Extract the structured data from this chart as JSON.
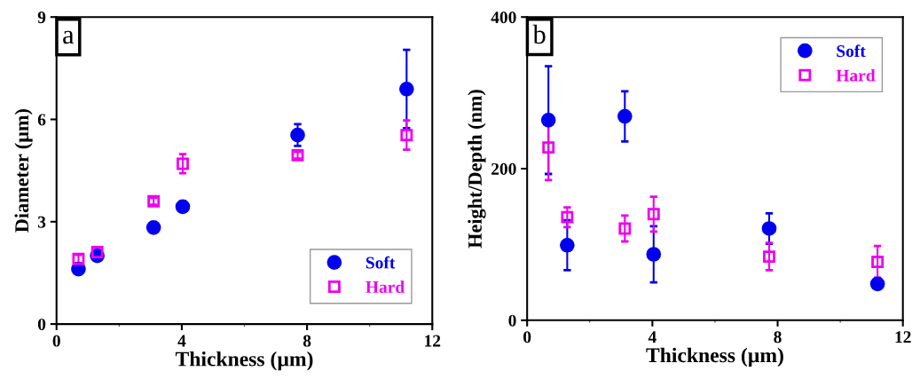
{
  "chart_data": [
    {
      "type": "scatter",
      "annotations": [
        "a"
      ],
      "xlabel": "Thickness (µm)",
      "ylabel": "Diameter (µm)",
      "xlim": [
        0,
        12
      ],
      "xticks": [
        0,
        4,
        8,
        12
      ],
      "ylim": [
        0,
        9
      ],
      "yticks": [
        0,
        3,
        6,
        9
      ],
      "legend": "bottom right",
      "grid": false,
      "x": [
        0.7,
        1.3,
        3.1,
        4.03,
        7.7,
        11.18
      ],
      "series": [
        {
          "name": "Soft",
          "color": "#0000ee",
          "marker": "circle",
          "values": [
            1.61,
            2.0,
            2.83,
            3.44,
            5.54,
            6.89
          ],
          "errors": [
            0.1,
            0.1,
            0.1,
            0.15,
            0.32,
            1.15
          ]
        },
        {
          "name": "Hard",
          "color": "#ee00ee",
          "marker": "square",
          "values": [
            1.91,
            2.11,
            3.6,
            4.7,
            4.95,
            5.54
          ],
          "errors": [
            0.12,
            0.12,
            0.1,
            0.28,
            0.1,
            0.43
          ]
        }
      ]
    },
    {
      "type": "scatter",
      "annotations": [
        "b"
      ],
      "xlabel": "Thickness (µm)",
      "ylabel": "Height/Depth (nm)",
      "xlim": [
        0,
        12
      ],
      "xticks": [
        0,
        4,
        8,
        12
      ],
      "ylim": [
        0,
        400
      ],
      "yticks": [
        0,
        200,
        400
      ],
      "legend": "top right",
      "grid": false,
      "x": [
        0.68,
        1.28,
        3.12,
        4.04,
        7.73,
        11.19
      ],
      "series": [
        {
          "name": "Soft",
          "color": "#0000ee",
          "marker": "circle",
          "values": [
            264,
            99,
            269,
            87,
            121,
            48
          ],
          "errors": [
            71,
            33,
            33,
            37,
            20,
            4
          ]
        },
        {
          "name": "Hard",
          "color": "#ee00ee",
          "marker": "square",
          "values": [
            228,
            136,
            121,
            140,
            84,
            77
          ],
          "errors": [
            43,
            13,
            17,
            23,
            18,
            21
          ]
        }
      ]
    }
  ]
}
